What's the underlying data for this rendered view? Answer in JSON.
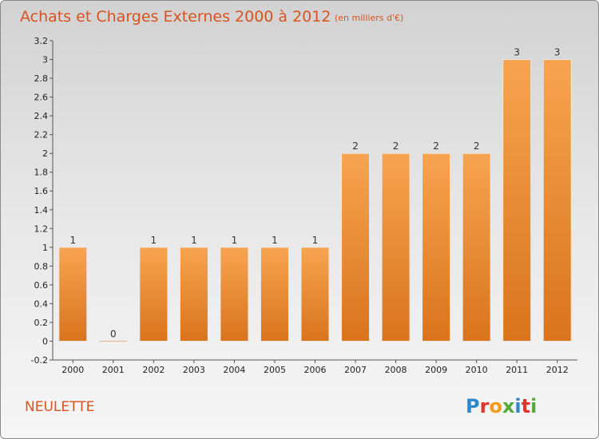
{
  "title": "Achats et Charges Externes 2000 à 2012",
  "unit": "(en milliers d'€)",
  "commune": "NEULETTE",
  "logo": {
    "letters": [
      "P",
      "r",
      "o",
      "x",
      "i",
      "t",
      "i"
    ],
    "colors": [
      "#2f86c9",
      "#e0342b",
      "#f39a1e",
      "#57a83a",
      "#2f86c9",
      "#e0342b",
      "#57a83a"
    ]
  },
  "chart_data": {
    "type": "bar",
    "categories": [
      "2000",
      "2001",
      "2002",
      "2003",
      "2004",
      "2005",
      "2006",
      "2007",
      "2008",
      "2009",
      "2010",
      "2011",
      "2012"
    ],
    "values": [
      1,
      0,
      1,
      1,
      1,
      1,
      1,
      2,
      2,
      2,
      2,
      3,
      3
    ],
    "data_labels": [
      "1",
      "0",
      "1",
      "1",
      "1",
      "1",
      "1",
      "2",
      "2",
      "2",
      "2",
      "3",
      "3"
    ],
    "ylim": [
      -0.2,
      3.2
    ],
    "yticks": [
      -0.2,
      0,
      0.2,
      0.4,
      0.6,
      0.8,
      1,
      1.2,
      1.4,
      1.6,
      1.8,
      2,
      2.2,
      2.4,
      2.6,
      2.8,
      3,
      3.2
    ],
    "ytick_labels": [
      "-0.2",
      "0",
      "0.2",
      "0.4",
      "0.6",
      "0.8",
      "1",
      "1.2",
      "1.4",
      "1.6",
      "1.8",
      "2",
      "2.2",
      "2.4",
      "2.6",
      "2.8",
      "3",
      "3.2"
    ],
    "bar_color": "#f0913a",
    "grid": false,
    "xlabel": "",
    "ylabel": ""
  }
}
